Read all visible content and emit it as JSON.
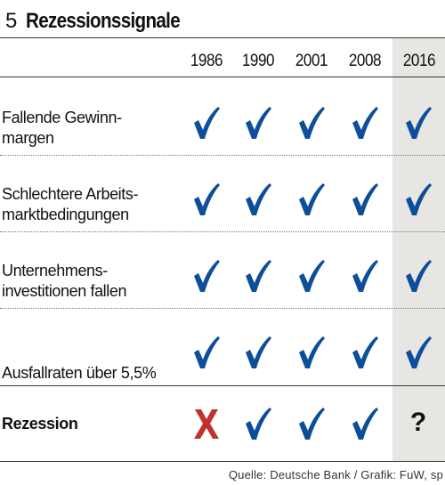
{
  "header": {
    "number": "5",
    "title": "Rezessionssignale"
  },
  "years": [
    "1986",
    "1990",
    "2001",
    "2008",
    "2016"
  ],
  "rows": [
    {
      "label_line1": "Fallende Gewinn-",
      "label_line2": "margen",
      "marks": [
        "check",
        "check",
        "check",
        "check",
        "check"
      ]
    },
    {
      "label_line1": "Schlechtere Arbeits-",
      "label_line2": "marktbedingungen",
      "marks": [
        "check",
        "check",
        "check",
        "check",
        "check"
      ]
    },
    {
      "label_line1": "Unternehmens-",
      "label_line2": "investitionen fallen",
      "marks": [
        "check",
        "check",
        "check",
        "check",
        "check"
      ]
    },
    {
      "label_line1": "",
      "label_line2": "Ausfallraten über 5,5%",
      "marks": [
        "check",
        "check",
        "check",
        "check",
        "check"
      ]
    },
    {
      "label_line1": "",
      "label_line2": "Rezession",
      "marks": [
        "cross",
        "check",
        "check",
        "check",
        "?"
      ]
    }
  ],
  "icons": {
    "check": "checkmark-icon",
    "cross": "cross-icon"
  },
  "colors": {
    "check": "#0d4e9a",
    "cross": "#c23030",
    "highlight": "#e8e6e2"
  },
  "source": "Quelle: Deutsche Bank / Grafik: FuW, sp"
}
